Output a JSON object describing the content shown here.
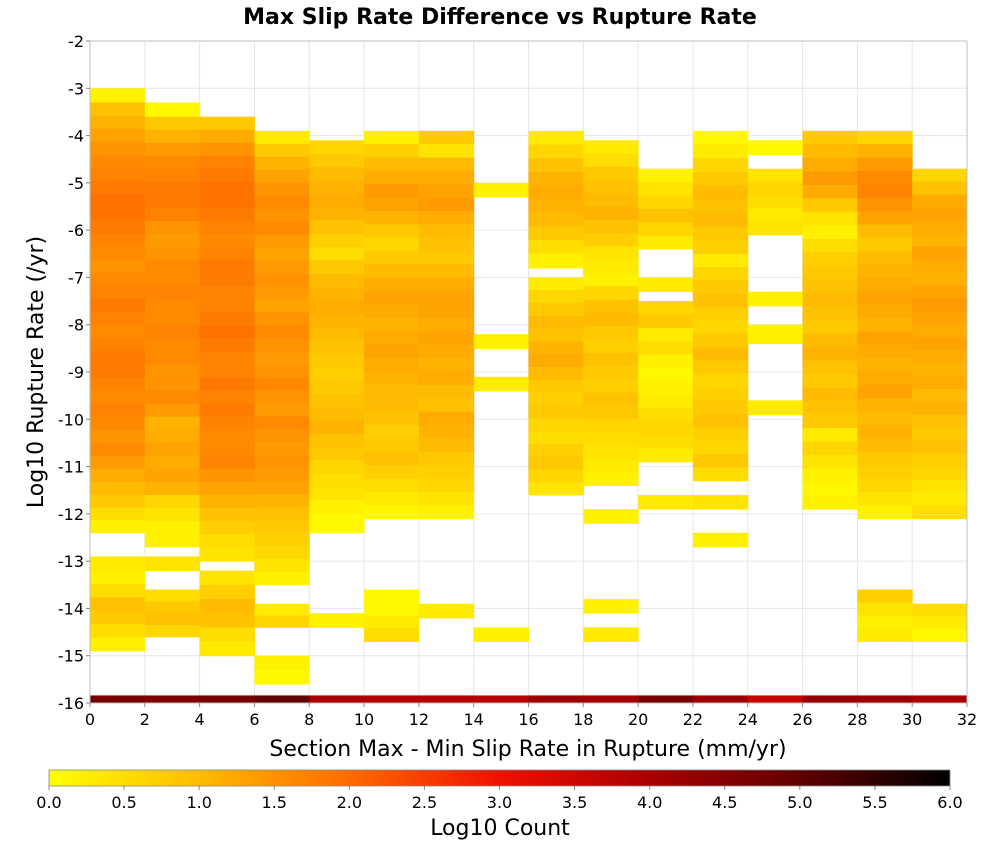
{
  "chart_data": {
    "type": "heatmap",
    "title": "Max Slip Rate Difference vs Rupture Rate",
    "xlabel": "Section Max - Min Slip Rate in Rupture (mm/yr)",
    "ylabel": "Log10 Rupture Rate (/yr)",
    "xlim": [
      0,
      32
    ],
    "ylim": [
      -16,
      -2
    ],
    "x_ticks": [
      0,
      2,
      4,
      6,
      8,
      10,
      12,
      14,
      16,
      18,
      20,
      22,
      24,
      26,
      28,
      30,
      32
    ],
    "y_ticks": [
      -2,
      -3,
      -4,
      -5,
      -6,
      -7,
      -8,
      -9,
      -10,
      -11,
      -12,
      -13,
      -14,
      -15,
      -16
    ],
    "x_bin_width": 2,
    "y_bin_height": 0.28,
    "colorbar": {
      "label": "Log10 Count",
      "range": [
        0,
        6
      ],
      "ticks": [
        0.0,
        0.5,
        1.0,
        1.5,
        2.0,
        2.5,
        3.0,
        3.5,
        4.0,
        4.5,
        5.0,
        5.5,
        6.0
      ],
      "stops": [
        {
          "v": 0.0,
          "color": "#ffff00"
        },
        {
          "v": 1.0,
          "color": "#ffbb00"
        },
        {
          "v": 2.0,
          "color": "#ff6a00"
        },
        {
          "v": 3.0,
          "color": "#ee1100"
        },
        {
          "v": 4.0,
          "color": "#aa0000"
        },
        {
          "v": 5.0,
          "color": "#600000"
        },
        {
          "v": 6.0,
          "color": "#000000"
        }
      ]
    },
    "columns": [
      {
        "x0": 0,
        "bottom_row": 4.7,
        "segments": [
          {
            "from": -3.0,
            "to": -3.3,
            "values": [
              0.2
            ]
          },
          {
            "from": -3.3,
            "to": -11.6,
            "values": [
              0.9,
              1.1,
              1.3,
              1.5,
              1.6,
              1.7,
              1.8,
              1.9,
              1.9,
              1.8,
              1.7,
              1.6,
              1.5,
              1.6,
              1.7,
              1.8,
              1.7,
              1.6,
              1.7,
              1.8,
              1.8,
              1.7,
              1.6,
              1.7,
              1.6,
              1.5,
              1.6,
              1.4,
              1.2,
              1.0
            ]
          },
          {
            "from": -11.6,
            "to": -12.4,
            "values": [
              0.8,
              0.5,
              0.2
            ]
          },
          {
            "from": -12.9,
            "to": -13.2,
            "values": [
              0.3
            ]
          },
          {
            "from": -13.2,
            "to": -14.9,
            "values": [
              0.2,
              0.5,
              0.9,
              0.8,
              0.5,
              0.2
            ]
          }
        ]
      },
      {
        "x0": 2,
        "bottom_row": 4.6,
        "segments": [
          {
            "from": -3.3,
            "to": -3.6,
            "values": [
              0.1
            ]
          },
          {
            "from": -3.6,
            "to": -11.6,
            "values": [
              0.8,
              1.1,
              1.4,
              1.6,
              1.7,
              1.8,
              1.8,
              1.7,
              1.5,
              1.4,
              1.5,
              1.6,
              1.6,
              1.7,
              1.6,
              1.6,
              1.7,
              1.6,
              1.6,
              1.5,
              1.5,
              1.6,
              1.4,
              1.1,
              1.2,
              1.3,
              1.2,
              1.3,
              1.1
            ]
          },
          {
            "from": -11.6,
            "to": -12.7,
            "values": [
              0.6,
              0.4,
              0.2,
              0.2
            ]
          },
          {
            "from": -12.9,
            "to": -13.2,
            "values": [
              0.4
            ]
          },
          {
            "from": -13.6,
            "to": -14.6,
            "values": [
              0.5,
              0.8,
              0.9,
              0.6
            ]
          }
        ]
      },
      {
        "x0": 4,
        "bottom_row": 4.7,
        "segments": [
          {
            "from": -3.6,
            "to": -12.7,
            "values": [
              0.8,
              1.2,
              1.5,
              1.7,
              1.8,
              1.9,
              1.9,
              1.8,
              1.7,
              1.6,
              1.7,
              1.8,
              1.8,
              1.7,
              1.7,
              1.8,
              1.9,
              1.8,
              1.7,
              1.7,
              1.8,
              1.7,
              1.8,
              1.7,
              1.6,
              1.6,
              1.7,
              1.5,
              1.3,
              1.1,
              0.9,
              0.7,
              0.5
            ]
          },
          {
            "from": -12.7,
            "to": -13.0,
            "values": [
              0.4
            ]
          },
          {
            "from": -13.2,
            "to": -15.0,
            "values": [
              0.4,
              0.7,
              1.0,
              0.9,
              0.5,
              0.3
            ]
          }
        ]
      },
      {
        "x0": 6,
        "bottom_row": 5.0,
        "segments": [
          {
            "from": -3.9,
            "to": -13.5,
            "values": [
              0.3,
              0.8,
              1.1,
              1.3,
              1.5,
              1.6,
              1.5,
              1.6,
              1.4,
              1.3,
              1.4,
              1.5,
              1.4,
              1.3,
              1.5,
              1.6,
              1.5,
              1.4,
              1.5,
              1.6,
              1.5,
              1.4,
              1.6,
              1.5,
              1.4,
              1.5,
              1.4,
              1.3,
              1.1,
              0.9,
              0.8,
              0.7,
              0.6,
              0.4,
              0.2
            ]
          },
          {
            "from": -13.9,
            "to": -14.4,
            "values": [
              0.3,
              0.6
            ]
          },
          {
            "from": -15.0,
            "to": -15.6,
            "values": [
              0.2,
              0.1
            ]
          }
        ]
      },
      {
        "x0": 8,
        "bottom_row": 4.0,
        "segments": [
          {
            "from": -4.1,
            "to": -12.0,
            "values": [
              0.6,
              0.8,
              1.0,
              1.1,
              1.2,
              1.1,
              0.9,
              0.7,
              0.5,
              0.8,
              1.0,
              1.1,
              1.2,
              1.1,
              1.0,
              0.9,
              0.8,
              0.7,
              0.8,
              0.9,
              1.0,
              1.1,
              0.9,
              0.8,
              0.6,
              0.5,
              0.4,
              0.2
            ]
          },
          {
            "from": -12.0,
            "to": -12.4,
            "values": [
              0.1
            ]
          },
          {
            "from": -14.1,
            "to": -14.4,
            "values": [
              0.2
            ]
          }
        ]
      },
      {
        "x0": 10,
        "bottom_row": 3.9,
        "segments": [
          {
            "from": -3.9,
            "to": -12.1,
            "values": [
              0.2,
              0.7,
              1.0,
              1.2,
              1.4,
              1.3,
              1.1,
              0.8,
              0.6,
              0.8,
              1.0,
              1.2,
              1.3,
              1.2,
              1.1,
              1.2,
              1.3,
              1.2,
              1.1,
              1.0,
              1.0,
              0.9,
              0.7,
              0.8,
              0.9,
              0.7,
              0.5,
              0.3,
              0.1
            ]
          },
          {
            "from": -13.6,
            "to": -14.7,
            "values": [
              0.1,
              0.1,
              0.3,
              0.5
            ]
          }
        ]
      },
      {
        "x0": 12,
        "bottom_row": 3.9,
        "segments": [
          {
            "from": -3.9,
            "to": -12.1,
            "values": [
              0.8,
              0.4,
              1.0,
              1.2,
              1.3,
              1.4,
              1.2,
              1.0,
              0.9,
              0.8,
              1.0,
              1.2,
              1.3,
              1.3,
              1.2,
              1.3,
              1.2,
              1.1,
              1.2,
              1.0,
              0.9,
              1.2,
              1.1,
              1.0,
              0.8,
              0.7,
              0.6,
              0.4,
              0.2
            ]
          },
          {
            "from": -13.9,
            "to": -14.2,
            "values": [
              0.3
            ]
          }
        ]
      },
      {
        "x0": 14,
        "bottom_row": 3.8,
        "segments": [
          {
            "from": -5.0,
            "to": -5.3,
            "values": [
              0.2
            ]
          },
          {
            "from": -8.2,
            "to": -8.5,
            "values": [
              0.2
            ]
          },
          {
            "from": -9.1,
            "to": -9.4,
            "values": [
              0.3
            ]
          },
          {
            "from": -14.4,
            "to": -14.7,
            "values": [
              0.2
            ]
          }
        ]
      },
      {
        "x0": 16,
        "bottom_row": 4.2,
        "segments": [
          {
            "from": -3.9,
            "to": -6.5,
            "values": [
              0.3,
              0.6,
              0.9,
              1.1,
              1.2,
              1.1,
              1.0,
              0.8,
              0.5
            ]
          },
          {
            "from": -6.5,
            "to": -6.8,
            "values": [
              0.2
            ]
          },
          {
            "from": -7.0,
            "to": -11.6,
            "values": [
              0.3,
              0.6,
              0.8,
              1.0,
              0.9,
              1.1,
              1.2,
              1.0,
              0.8,
              0.7,
              0.8,
              0.6,
              0.5,
              0.7,
              0.8,
              0.6,
              0.4
            ]
          }
        ]
      },
      {
        "x0": 18,
        "bottom_row": 4.1,
        "segments": [
          {
            "from": -4.1,
            "to": -11.4,
            "values": [
              0.3,
              0.5,
              0.8,
              0.9,
              1.0,
              1.1,
              0.9,
              0.7,
              0.4,
              0.3,
              0.2,
              0.6,
              0.9,
              1.0,
              0.8,
              0.7,
              0.9,
              0.8,
              0.7,
              0.9,
              0.8,
              0.6,
              0.5,
              0.4,
              0.3,
              0.2
            ]
          },
          {
            "from": -11.9,
            "to": -12.2,
            "values": [
              0.2
            ]
          },
          {
            "from": -13.8,
            "to": -14.1,
            "values": [
              0.2
            ]
          },
          {
            "from": -14.4,
            "to": -14.7,
            "values": [
              0.3
            ]
          }
        ]
      },
      {
        "x0": 20,
        "bottom_row": 4.7,
        "segments": [
          {
            "from": -4.7,
            "to": -6.4,
            "values": [
              0.2,
              0.4,
              0.6,
              0.9,
              0.6,
              0.3
            ]
          },
          {
            "from": -7.0,
            "to": -7.3,
            "values": [
              0.3
            ]
          },
          {
            "from": -7.5,
            "to": -10.9,
            "values": [
              0.6,
              0.8,
              0.3,
              0.5,
              0.2,
              0.1,
              0.2,
              0.3,
              0.5,
              0.6,
              0.5,
              0.3
            ]
          },
          {
            "from": -11.6,
            "to": -11.9,
            "values": [
              0.3
            ]
          }
        ]
      },
      {
        "x0": 22,
        "bottom_row": 4.2,
        "segments": [
          {
            "from": -3.9,
            "to": -6.5,
            "values": [
              0.1,
              0.3,
              0.6,
              0.8,
              1.0,
              0.9,
              1.0,
              0.8,
              0.7
            ]
          },
          {
            "from": -6.5,
            "to": -11.3,
            "values": [
              0.3,
              0.6,
              0.8,
              0.9,
              0.7,
              0.6,
              0.8,
              1.0,
              0.8,
              0.6,
              0.7,
              0.8,
              0.9,
              0.7,
              0.6,
              0.8,
              0.5
            ]
          },
          {
            "from": -11.6,
            "to": -11.9,
            "values": [
              0.4
            ]
          },
          {
            "from": -12.4,
            "to": -12.7,
            "values": [
              0.2
            ]
          }
        ]
      },
      {
        "x0": 24,
        "bottom_row": 3.6,
        "segments": [
          {
            "from": -4.1,
            "to": -4.4,
            "values": [
              0.1
            ]
          },
          {
            "from": -4.7,
            "to": -6.1,
            "values": [
              0.4,
              0.6,
              0.5,
              0.3,
              0.4
            ]
          },
          {
            "from": -7.3,
            "to": -7.6,
            "values": [
              0.2
            ]
          },
          {
            "from": -8.4,
            "to": -8.0,
            "values": [
              0.2
            ]
          },
          {
            "from": -9.6,
            "to": -9.9,
            "values": [
              0.3
            ]
          }
        ]
      },
      {
        "x0": 26,
        "bottom_row": 4.3,
        "segments": [
          {
            "from": -3.9,
            "to": -11.9,
            "values": [
              0.8,
              1.0,
              1.2,
              1.4,
              1.2,
              0.8,
              0.4,
              0.2,
              0.5,
              0.7,
              0.8,
              0.9,
              1.0,
              0.9,
              0.8,
              1.0,
              1.1,
              0.9,
              0.8,
              1.0,
              0.9,
              0.8,
              0.3,
              0.6,
              0.4,
              0.2,
              0.1,
              0.2
            ]
          }
        ]
      },
      {
        "x0": 28,
        "bottom_row": 4.2,
        "segments": [
          {
            "from": -3.9,
            "to": -12.1,
            "values": [
              0.6,
              1.1,
              1.4,
              1.6,
              1.7,
              1.5,
              1.3,
              1.0,
              0.8,
              1.0,
              1.1,
              1.2,
              1.3,
              1.2,
              1.1,
              1.3,
              1.2,
              1.1,
              1.2,
              1.3,
              1.1,
              1.0,
              1.1,
              1.0,
              0.8,
              0.7,
              0.6,
              0.4,
              0.2
            ]
          },
          {
            "from": -13.6,
            "to": -14.7,
            "values": [
              0.7,
              0.4,
              0.2,
              0.3
            ]
          }
        ]
      },
      {
        "x0": 30,
        "bottom_row": 4.0,
        "segments": [
          {
            "from": -4.7,
            "to": -12.1,
            "values": [
              0.6,
              0.9,
              1.2,
              1.3,
              1.2,
              1.1,
              1.3,
              1.2,
              1.1,
              1.3,
              1.4,
              1.3,
              1.2,
              1.3,
              1.2,
              1.1,
              1.2,
              1.0,
              1.1,
              0.9,
              0.8,
              0.9,
              0.7,
              0.6,
              0.4,
              0.3,
              0.5
            ]
          },
          {
            "from": -13.9,
            "to": -14.7,
            "values": [
              0.5,
              0.3,
              0.1
            ]
          }
        ]
      }
    ],
    "bottom_row_values": [
      4.7,
      4.6,
      4.7,
      5.0,
      4.0,
      3.9,
      3.9,
      3.8,
      4.2,
      4.1,
      4.7,
      4.2,
      3.6,
      4.3,
      4.2,
      4.0
    ]
  }
}
